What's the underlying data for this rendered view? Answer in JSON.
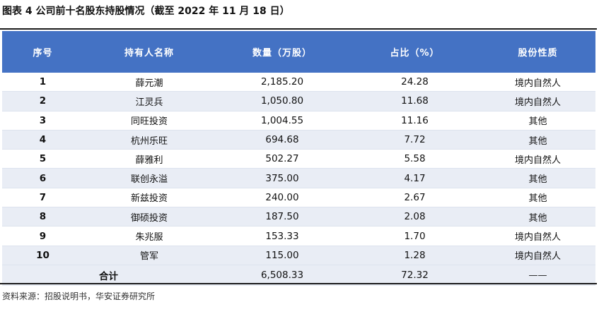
{
  "title": "图表 4 公司前十名股东持股情况（截至 2022 年 11 月 18 日）",
  "columns": [
    "序号",
    "持有人名称",
    "数量（万股）",
    "占比（%）",
    "股份性质"
  ],
  "rows": [
    {
      "no": "1",
      "name": "薛元潮",
      "qty": "2,185.20",
      "pct": "24.28",
      "type": "境内自然人"
    },
    {
      "no": "2",
      "name": "江灵兵",
      "qty": "1,050.80",
      "pct": "11.68",
      "type": "境内自然人"
    },
    {
      "no": "3",
      "name": "同旺投资",
      "qty": "1,004.55",
      "pct": "11.16",
      "type": "其他"
    },
    {
      "no": "4",
      "name": "杭州乐旺",
      "qty": "694.68",
      "pct": "7.72",
      "type": "其他"
    },
    {
      "no": "5",
      "name": "薛雅利",
      "qty": "502.27",
      "pct": "5.58",
      "type": "境内自然人"
    },
    {
      "no": "6",
      "name": "联创永溢",
      "qty": "375.00",
      "pct": "4.17",
      "type": "其他"
    },
    {
      "no": "7",
      "name": "新兹投资",
      "qty": "240.00",
      "pct": "2.67",
      "type": "其他"
    },
    {
      "no": "8",
      "name": "御硕投资",
      "qty": "187.50",
      "pct": "2.08",
      "type": "其他"
    },
    {
      "no": "9",
      "name": "朱兆服",
      "qty": "153.33",
      "pct": "1.70",
      "type": "境内自然人"
    },
    {
      "no": "10",
      "name": "管军",
      "qty": "115.00",
      "pct": "1.28",
      "type": "境内自然人"
    }
  ],
  "total": {
    "label": "合计",
    "qty": "6,508.33",
    "pct": "72.32",
    "type": "——"
  },
  "source": "资料来源：招股说明书，华安证券研究所",
  "colors": {
    "header_bg": "#4472c4",
    "header_text": "#ffffff",
    "stripe": "#e9edf5"
  }
}
